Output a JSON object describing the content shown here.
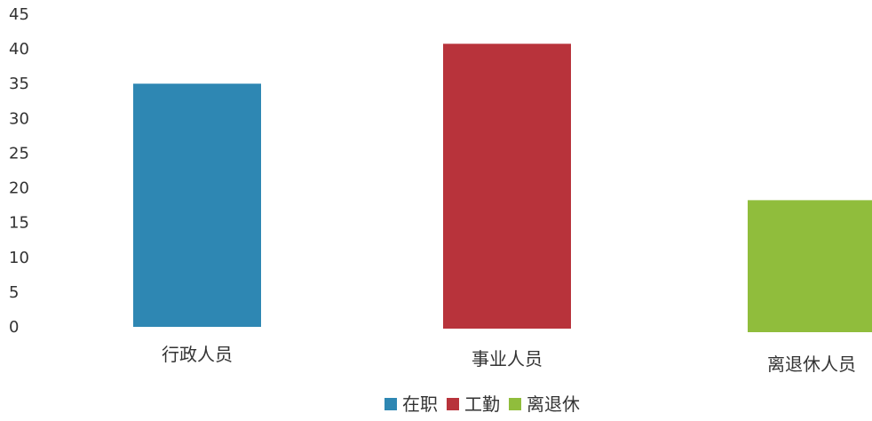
{
  "chart_data": {
    "type": "bar",
    "categories": [
      "行政人员",
      "事业人员",
      "离退休人员"
    ],
    "series": [
      {
        "name": "在职",
        "values": [
          35,
          0,
          0
        ],
        "color": "#2e87b3"
      },
      {
        "name": "工勤",
        "values": [
          0,
          41,
          0
        ],
        "color": "#b8333b"
      },
      {
        "name": "离退休",
        "values": [
          0,
          0,
          19
        ],
        "color": "#90bd3c"
      }
    ],
    "title": "",
    "xlabel": "",
    "ylabel": "",
    "ylim": [
      0,
      45
    ],
    "yticks": [
      0,
      5,
      10,
      15,
      20,
      25,
      30,
      35,
      40,
      45
    ],
    "grid": false,
    "legend_position": "bottom"
  }
}
